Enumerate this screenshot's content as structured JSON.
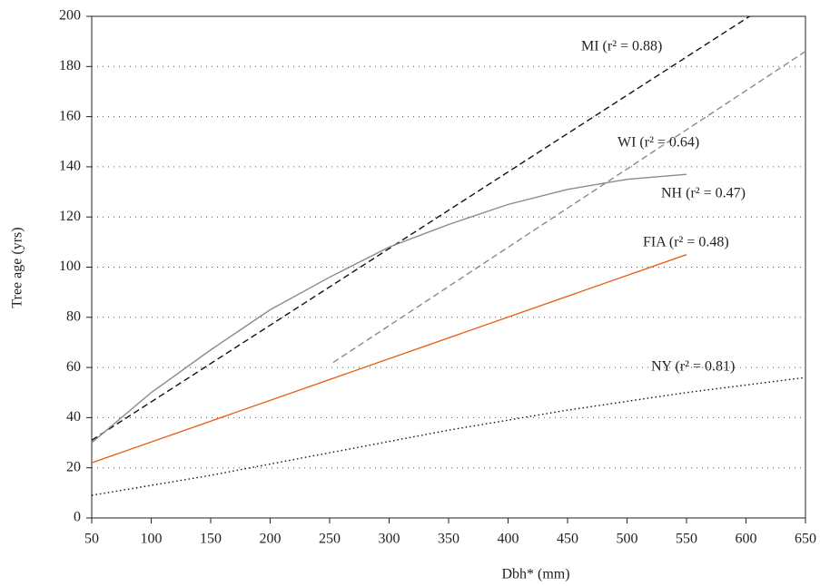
{
  "chart_data": {
    "type": "line",
    "xlabel": "Dbh* (mm)",
    "ylabel": "Tree age (yrs)",
    "xlim": [
      50,
      650
    ],
    "xticks": [
      50,
      100,
      150,
      200,
      250,
      300,
      350,
      400,
      450,
      500,
      550,
      600,
      650
    ],
    "ylim": [
      0,
      200
    ],
    "yticks": [
      0,
      20,
      40,
      60,
      80,
      100,
      120,
      140,
      160,
      180,
      200
    ],
    "grid": true,
    "series": [
      {
        "name": "MI (r² = 0.88)",
        "color": "#111111",
        "style": "dashed",
        "x": [
          50,
          603
        ],
        "values": [
          31,
          200
        ]
      },
      {
        "name": "WI (r² = 0.64)",
        "color": "#8a8a8a",
        "style": "dashed",
        "x": [
          253,
          650
        ],
        "values": [
          62,
          186
        ]
      },
      {
        "name": "NH (r² = 0.47)",
        "color": "#8a8a8a",
        "style": "solid",
        "x": [
          50,
          100,
          150,
          200,
          250,
          300,
          350,
          400,
          450,
          500,
          550
        ],
        "values": [
          30,
          50,
          67,
          83,
          96,
          108,
          117,
          125,
          131,
          135,
          137
        ]
      },
      {
        "name": "FIA (r² = 0.48)",
        "color": "#e8601c",
        "style": "solid",
        "x": [
          50,
          550
        ],
        "values": [
          22,
          105
        ]
      },
      {
        "name": "NY (r² = 0.81)",
        "color": "#111111",
        "style": "dotted",
        "x": [
          50,
          150,
          250,
          350,
          450,
          550,
          650
        ],
        "values": [
          9,
          17,
          26,
          35,
          43,
          50,
          56
        ]
      }
    ]
  }
}
